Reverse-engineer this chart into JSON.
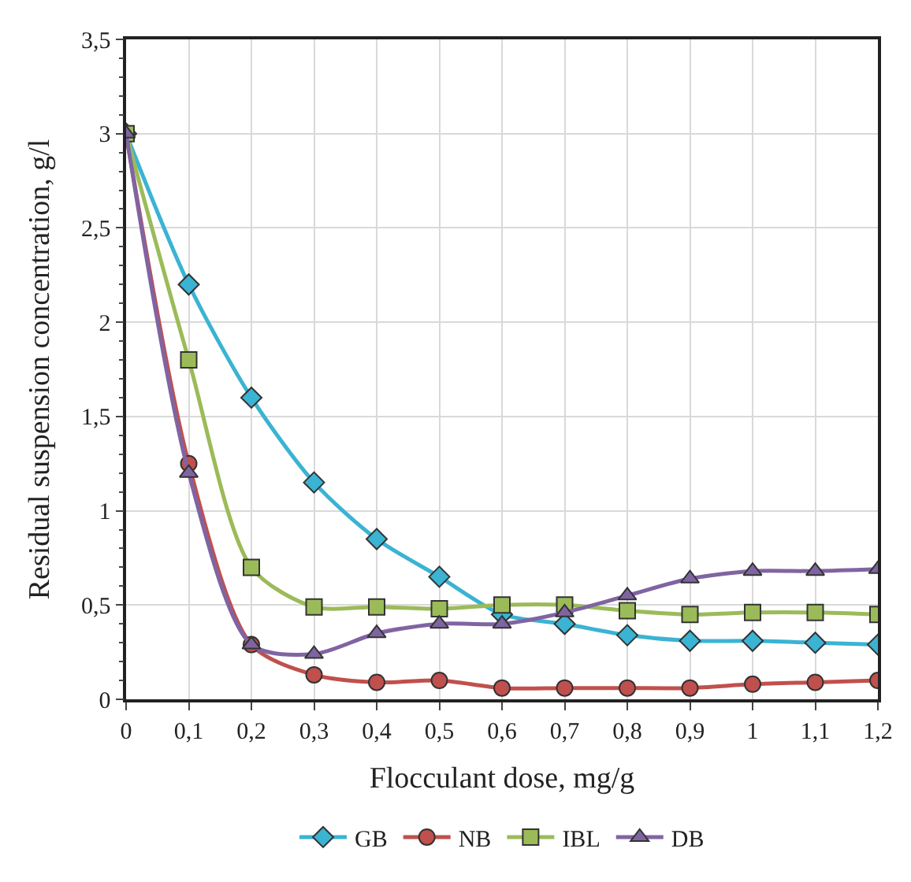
{
  "chart_data": {
    "type": "line",
    "xlabel": "Flocculant dose, mg/g",
    "ylabel": "Residual suspension concentration, g/l",
    "x": [
      0,
      0.1,
      0.2,
      0.3,
      0.4,
      0.5,
      0.6,
      0.7,
      0.8,
      0.9,
      1,
      1.1,
      1.2
    ],
    "series": [
      {
        "name": "GB",
        "color": "#3bb3d3",
        "marker": "diamond",
        "values": [
          3,
          2.2,
          1.6,
          1.15,
          0.85,
          0.65,
          0.45,
          0.4,
          0.34,
          0.31,
          0.31,
          0.3,
          0.29
        ]
      },
      {
        "name": "NB",
        "color": "#c0504d",
        "marker": "circle",
        "values": [
          3,
          1.25,
          0.29,
          0.13,
          0.09,
          0.1,
          0.06,
          0.06,
          0.06,
          0.06,
          0.08,
          0.09,
          0.1
        ]
      },
      {
        "name": "IBL",
        "color": "#9bbb59",
        "marker": "square",
        "values": [
          3,
          1.8,
          0.7,
          0.49,
          0.49,
          0.48,
          0.5,
          0.5,
          0.47,
          0.45,
          0.46,
          0.46,
          0.45
        ]
      },
      {
        "name": "DB",
        "color": "#8064a2",
        "marker": "triangle",
        "values": [
          3,
          1.2,
          0.29,
          0.24,
          0.35,
          0.4,
          0.4,
          0.46,
          0.55,
          0.64,
          0.68,
          0.68,
          0.69
        ]
      }
    ],
    "xlim": [
      0,
      1.2
    ],
    "ylim": [
      0,
      3.5
    ],
    "xticks": [
      0,
      {
        "value": 0.1,
        "label": "0,1"
      },
      {
        "value": 0.2,
        "label": "0,2"
      },
      {
        "value": 0.3,
        "label": "0,3"
      },
      {
        "value": 0.4,
        "label": "0,4"
      },
      {
        "value": 0.5,
        "label": "0,5"
      },
      {
        "value": 0.6,
        "label": "0,6"
      },
      {
        "value": 0.7,
        "label": "0,7"
      },
      {
        "value": 0.8,
        "label": "0,8"
      },
      {
        "value": 0.9,
        "label": "0,9"
      },
      1,
      {
        "value": 1.1,
        "label": "1,1"
      },
      {
        "value": 1.2,
        "label": "1,2"
      }
    ],
    "yticks": [
      0,
      {
        "value": 0.5,
        "label": "0,5"
      },
      1,
      {
        "value": 1.5,
        "label": "1,5"
      },
      2,
      {
        "value": 2.5,
        "label": "2,5"
      },
      3,
      {
        "value": 3.5,
        "label": "3,5"
      }
    ],
    "grid": true,
    "legend": "bottom",
    "line_style": "solid"
  }
}
